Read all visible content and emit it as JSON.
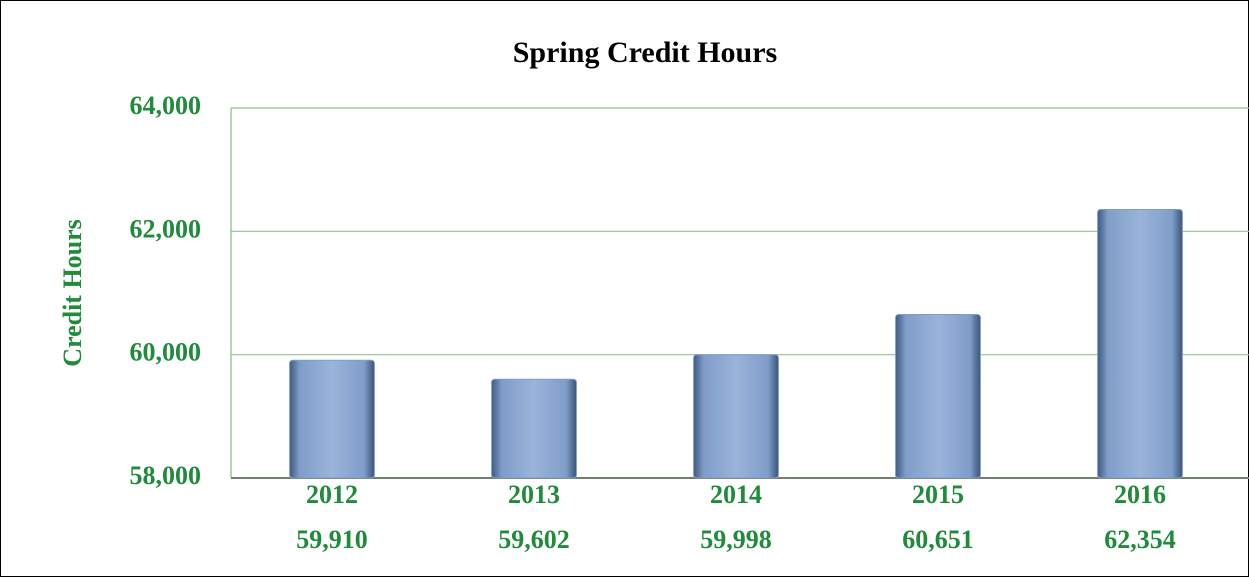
{
  "chart_data": {
    "type": "bar",
    "title": "Spring Credit Hours",
    "y_label": "Credit Hours",
    "categories": [
      "2012",
      "2013",
      "2014",
      "2015",
      "2016"
    ],
    "values": [
      59910,
      59602,
      59998,
      60651,
      62354
    ],
    "value_labels": [
      "59,910",
      "59,602",
      "59,998",
      "60,651",
      "62,354"
    ],
    "color": "#7f9dc9",
    "ylim": [
      58000,
      64000
    ],
    "yticks": [
      {
        "value": 58000,
        "label": "58,000"
      },
      {
        "value": 60000,
        "label": "60,000"
      },
      {
        "value": 62000,
        "label": "62,000"
      },
      {
        "value": 64000,
        "label": "64,000"
      }
    ],
    "grid": true
  }
}
